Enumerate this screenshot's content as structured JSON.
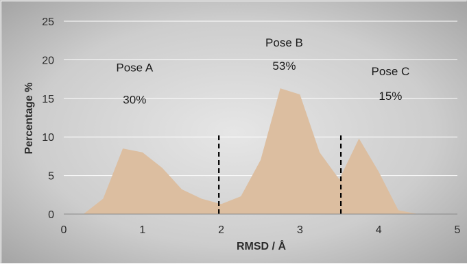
{
  "chart_data": {
    "type": "area",
    "xlabel": "RMSD / Å",
    "ylabel": "Percentage %",
    "xlim": [
      0,
      5
    ],
    "ylim": [
      0,
      25
    ],
    "x_ticks": [
      "0",
      "1",
      "2",
      "3",
      "4",
      "5"
    ],
    "y_ticks": [
      "0",
      "5",
      "10",
      "15",
      "20",
      "25"
    ],
    "grid": "horizontal",
    "series": [
      {
        "x": [
          0.25,
          0.5,
          0.75,
          1.0,
          1.25,
          1.5,
          1.75,
          2.0,
          2.25,
          2.5,
          2.75,
          3.0,
          3.25,
          3.5,
          3.75,
          4.0,
          4.25,
          4.5
        ],
        "values": [
          0,
          2,
          8.5,
          8,
          6,
          3.2,
          2,
          1.3,
          2.3,
          7,
          16.3,
          15.5,
          8,
          4.5,
          9.8,
          5.5,
          0.5,
          0
        ],
        "color": "#dcbea0"
      }
    ],
    "dividers": [
      1.97,
      3.52
    ],
    "annotations": [
      {
        "label": "Pose A",
        "percent": "30%",
        "x": 0.9,
        "y_label": 18.5,
        "y_percent": 14.3
      },
      {
        "label": "Pose B",
        "percent": "53%",
        "x": 2.8,
        "y_label": 21.7,
        "y_percent": 18.7
      },
      {
        "label": "Pose C",
        "percent": "15%",
        "x": 4.15,
        "y_label": 18.0,
        "y_percent": 14.8
      }
    ]
  },
  "colors": {
    "plot_bg_light": "#e2e2e2",
    "plot_bg_dark": "#a2a2a2",
    "area_fill": "#dcbea0",
    "gridline": "#ffffff",
    "divider": "#000000"
  }
}
